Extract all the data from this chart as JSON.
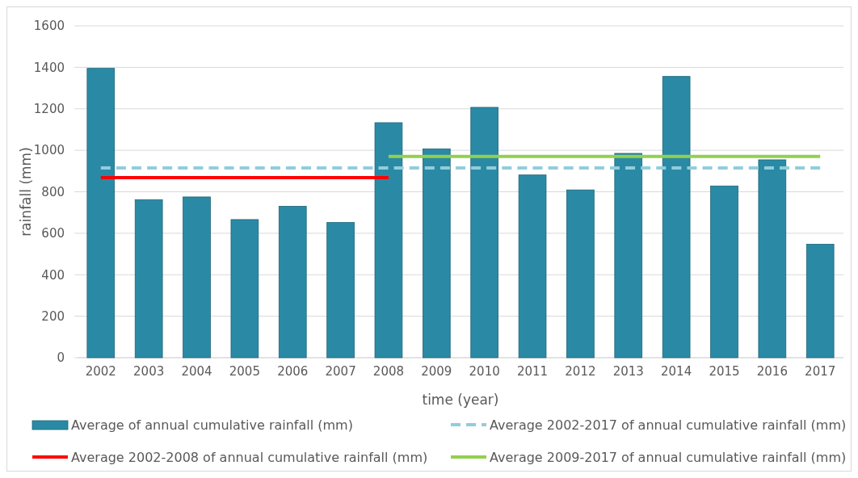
{
  "chart_data": {
    "type": "bar",
    "xlabel": "time (year)",
    "ylabel": "rainfall (mm)",
    "categories": [
      "2002",
      "2003",
      "2004",
      "2005",
      "2006",
      "2007",
      "2008",
      "2009",
      "2010",
      "2011",
      "2012",
      "2013",
      "2014",
      "2015",
      "2016",
      "2017"
    ],
    "series": [
      {
        "name": "Average of annual cumulative rainfall (mm)",
        "color": "#2a8aa6",
        "values": [
          1395,
          762,
          775,
          666,
          730,
          652,
          1133,
          1007,
          1207,
          881,
          809,
          985,
          1356,
          828,
          954,
          547
        ]
      },
      {
        "name": "Average 2002-2017 of annual cumulative rainfall (mm)",
        "type": "line",
        "line_style": "dashed",
        "color": "#92cddc",
        "values": [
          915,
          915,
          915,
          915,
          915,
          915,
          915,
          915,
          915,
          915,
          915,
          915,
          915,
          915,
          915,
          915
        ]
      },
      {
        "name": "Average 2002-2008 of annual cumulative rainfall (mm)",
        "type": "line",
        "line_style": "solid",
        "color": "#ff0000",
        "values": [
          868,
          868,
          868,
          868,
          868,
          868,
          868,
          null,
          null,
          null,
          null,
          null,
          null,
          null,
          null,
          null
        ]
      },
      {
        "name": "Average 2009-2017 of annual cumulative rainfall (mm)",
        "type": "line",
        "line_style": "solid",
        "color": "#92d050",
        "values": [
          null,
          null,
          null,
          null,
          null,
          null,
          970,
          970,
          970,
          970,
          970,
          970,
          970,
          970,
          970,
          970
        ]
      }
    ],
    "ylim": [
      0,
      1600
    ],
    "yticks": [
      0,
      200,
      400,
      600,
      800,
      1000,
      1200,
      1400,
      1600
    ],
    "grid": "y",
    "legend": "bottom"
  }
}
